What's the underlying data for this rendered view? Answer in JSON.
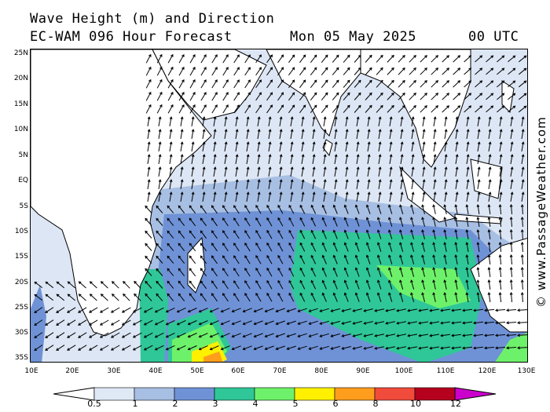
{
  "header": {
    "title_line1": "Wave Height (m) and Direction",
    "model": "EC-WAM 096 Hour Forecast",
    "date": "Mon 05 May 2025",
    "time": "00 UTC"
  },
  "axes": {
    "lat_labels": [
      "25N",
      "20N",
      "15N",
      "10N",
      "5N",
      "EQ",
      "5S",
      "10S",
      "15S",
      "20S",
      "25S",
      "30S",
      "35S"
    ],
    "lon_labels": [
      "10E",
      "20E",
      "30E",
      "40E",
      "50E",
      "60E",
      "70E",
      "80E",
      "90E",
      "100E",
      "110E",
      "120E",
      "130E"
    ]
  },
  "credit": "© www.PassageWeather.com",
  "legend": {
    "labels": [
      "0.5",
      "1",
      "2",
      "3",
      "4",
      "5",
      "6",
      "8",
      "10",
      "12"
    ],
    "colors": [
      "#dfe8f5",
      "#a7bfe3",
      "#6f92d6",
      "#2fc797",
      "#6ef16a",
      "#fff000",
      "#ff9d1d",
      "#f14b3c",
      "#b5001e",
      "#cc00cc"
    ]
  },
  "map_colors": {
    "land": "#ffffff",
    "sea_lt": "#dde6f4",
    "sea_1": "#a7bfe3",
    "sea_2": "#6f92d6",
    "sea_3": "#2fc797",
    "sea_4": "#6ef16a",
    "sea_5": "#fff000",
    "sea_6": "#ff9d1d"
  }
}
